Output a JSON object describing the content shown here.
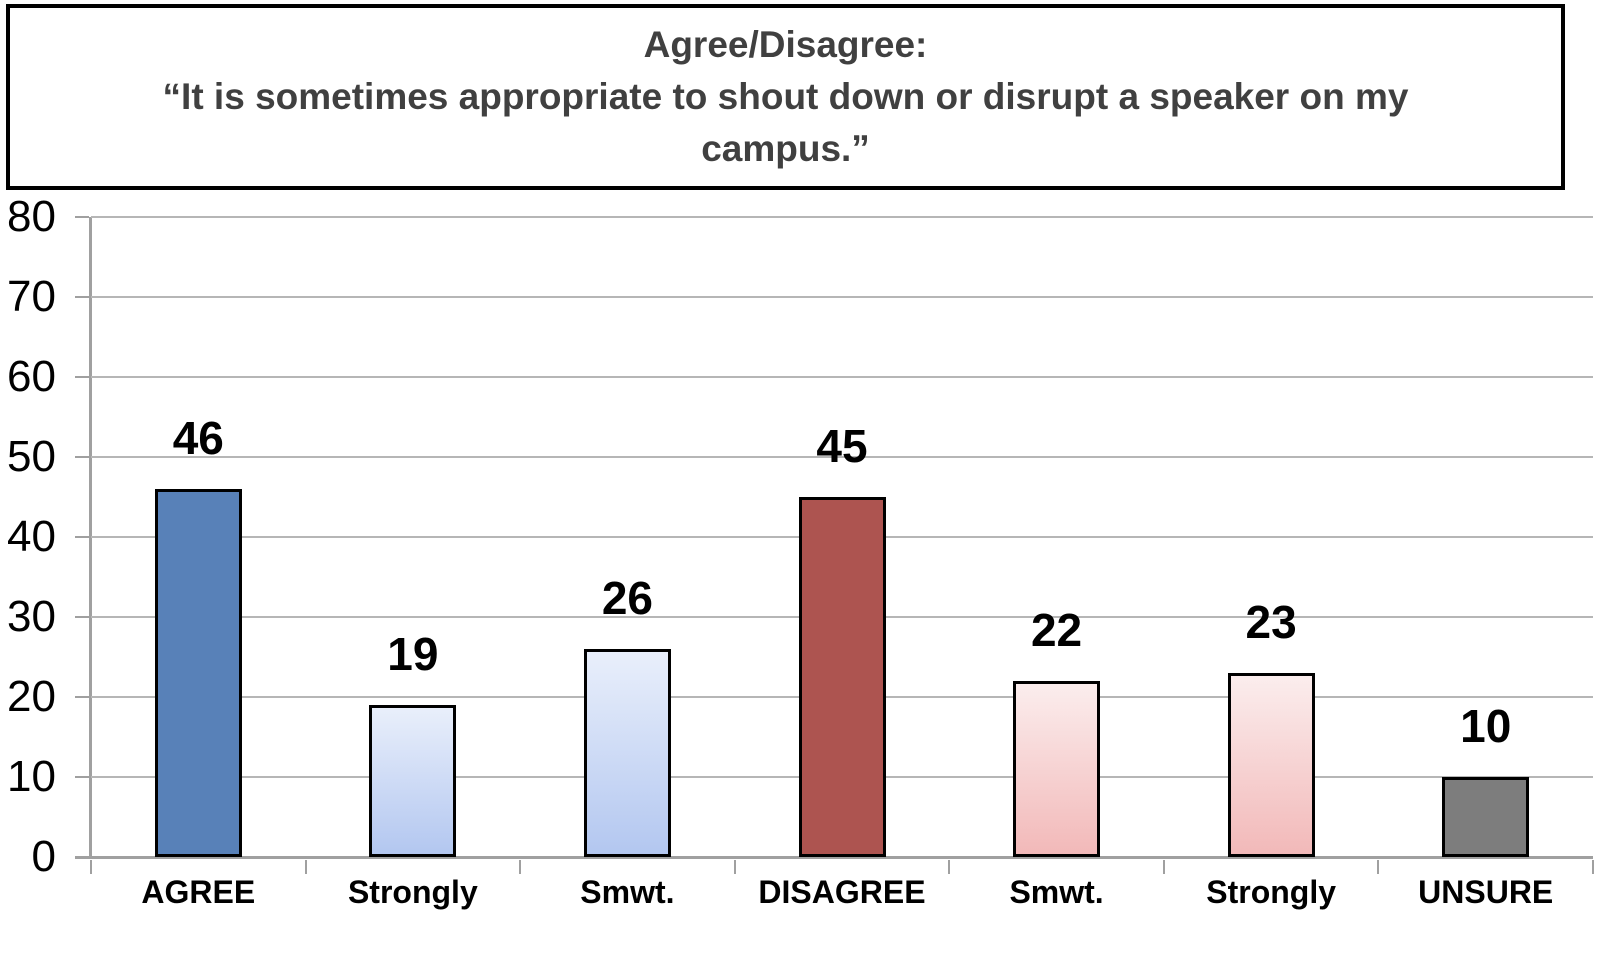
{
  "title": {
    "lines": [
      "Agree/Disagree:",
      "“It is sometimes appropriate to shout down or disrupt a speaker on my",
      "campus.”"
    ]
  },
  "chart_data": {
    "type": "bar",
    "title": "Agree/Disagree: “It is sometimes appropriate to shout down or disrupt a speaker on my campus.”",
    "categories": [
      "AGREE",
      "Strongly",
      "Smwt.",
      "DISAGREE",
      "Smwt.",
      "Strongly",
      "UNSURE"
    ],
    "values": [
      46,
      19,
      26,
      45,
      22,
      23,
      10
    ],
    "xlabel": "",
    "ylabel": "",
    "ylim": [
      0,
      80
    ],
    "yticks": [
      0,
      10,
      20,
      30,
      40,
      50,
      60,
      70,
      80
    ],
    "grid": true,
    "legend": false,
    "bar_styles": [
      {
        "fill": "solid",
        "color": "#5881b8"
      },
      {
        "fill": "gradient",
        "from": "#e9effb",
        "to": "#b3c7f0"
      },
      {
        "fill": "gradient",
        "from": "#e9effb",
        "to": "#b3c7f0"
      },
      {
        "fill": "solid",
        "color": "#ad5450"
      },
      {
        "fill": "gradient",
        "from": "#fbeded",
        "to": "#f2b9b9"
      },
      {
        "fill": "gradient",
        "from": "#fbeded",
        "to": "#f2b9b9"
      },
      {
        "fill": "solid",
        "color": "#7d7d7d"
      }
    ],
    "colors": {
      "agree_blue": "#5881b8",
      "disagree_red": "#ad5450",
      "unsure_gray": "#7d7d7d",
      "gridline": "#b6b6b6",
      "axis": "#a0a0a0",
      "title_text": "#404040",
      "label_text": "#000000",
      "bar_border": "#000000"
    }
  }
}
